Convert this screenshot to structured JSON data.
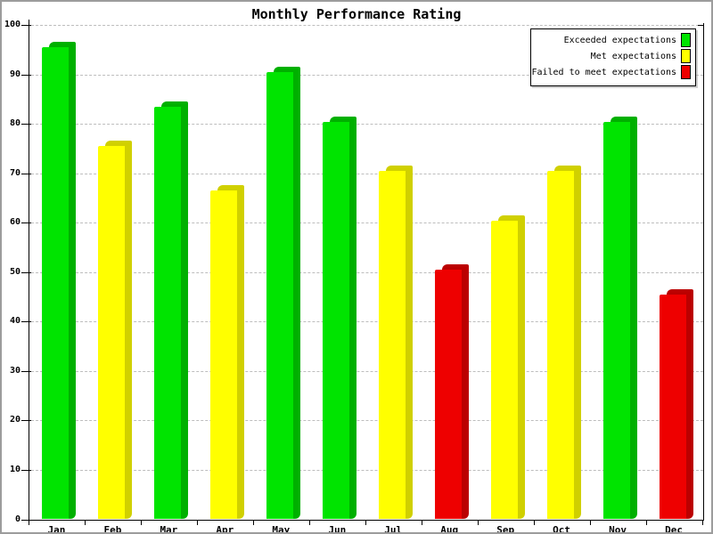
{
  "title": "Monthly Performance Rating",
  "chart_data": {
    "type": "bar",
    "title": "Monthly Performance Rating",
    "categories": [
      "Jan",
      "Feb",
      "Mar",
      "Apr",
      "May",
      "Jun",
      "Jul",
      "Aug",
      "Sep",
      "Oct",
      "Nov",
      "Dec"
    ],
    "values": [
      95.5,
      75.5,
      83.5,
      66.5,
      90.5,
      80.5,
      70.5,
      50.5,
      60.5,
      70.5,
      80.5,
      45.5
    ],
    "bar_color_keys": [
      "green",
      "yellow",
      "green",
      "yellow",
      "green",
      "green",
      "yellow",
      "red",
      "yellow",
      "yellow",
      "green",
      "red"
    ],
    "xlabel": "",
    "ylabel": "",
    "ylim": [
      0,
      100
    ],
    "yticks": [
      0,
      10,
      20,
      30,
      40,
      50,
      60,
      70,
      80,
      90,
      100
    ],
    "grid": "horizontal-dashed",
    "legend_position": "top-right",
    "legend": [
      {
        "label": "Exceeded expectations",
        "color_key": "green"
      },
      {
        "label": "Met expectations",
        "color_key": "yellow"
      },
      {
        "label": "Failed to meet expectations",
        "color_key": "red"
      }
    ],
    "colors": {
      "green": {
        "face": "#00E400",
        "side": "#00B000"
      },
      "yellow": {
        "face": "#FFFF00",
        "side": "#D0D000"
      },
      "red": {
        "face": "#EE0000",
        "side": "#BB0000"
      },
      "gridline": "#BDBDBD",
      "axis": "#000000",
      "text": "#000000"
    }
  }
}
